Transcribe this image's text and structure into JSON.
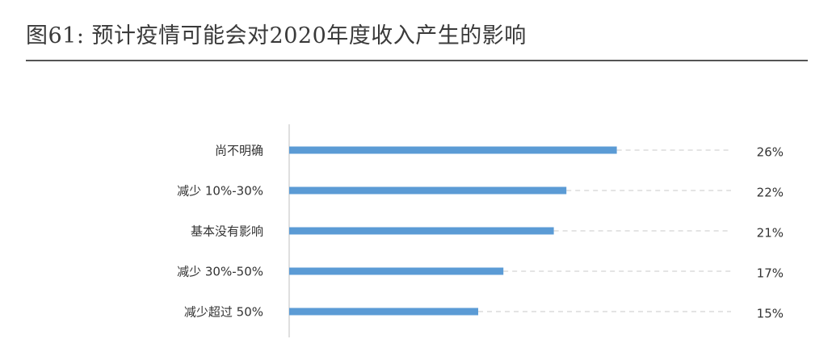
{
  "title": "图61: 预计疫情可能会对2020年度收入产生的影响",
  "colors": {
    "bar": "#5b9bd5",
    "leader": "#c8c8c8",
    "axis": "#bfbfbf",
    "rule": "#555555"
  },
  "chart_data": {
    "type": "bar",
    "orientation": "horizontal",
    "categories": [
      "尚不明确",
      "减少 10%-30%",
      "基本没有影响",
      "减少 30%-50%",
      "减少超过 50%"
    ],
    "values": [
      26,
      22,
      21,
      17,
      15
    ],
    "value_labels": [
      "26%",
      "22%",
      "21%",
      "17%",
      "15%"
    ],
    "unit": "%",
    "xlim": [
      0,
      40
    ],
    "grid": false,
    "legend": "none"
  }
}
